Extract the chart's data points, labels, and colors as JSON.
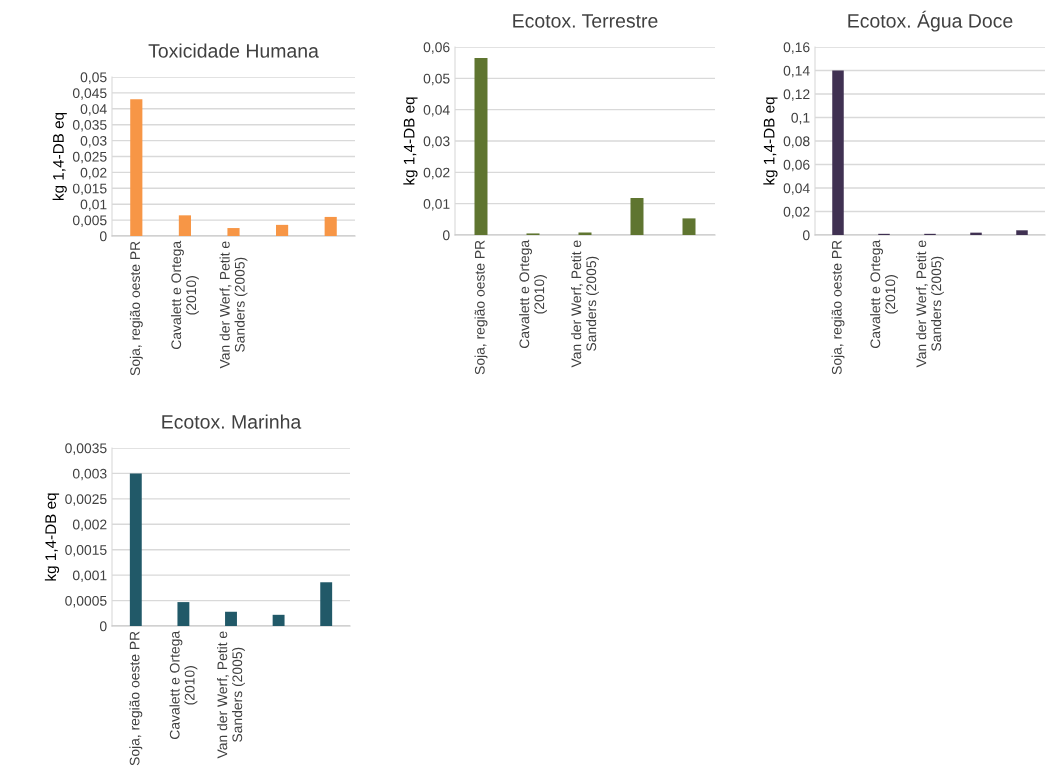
{
  "chart_data": [
    {
      "type": "bar",
      "title": "Toxicidade Humana",
      "ylabel": "kg 1,4-DB eq",
      "categories": [
        "Soja, região oeste PR",
        "Cavalett e Ortega (2010)",
        "Van der Werf, Petit e Sanders (2005)",
        null,
        null
      ],
      "values": [
        0.043,
        0.0065,
        0.0025,
        0.0035,
        0.006
      ],
      "color": "#f79646",
      "ylim": [
        0,
        0.05
      ],
      "yticks": [
        0,
        {
          "value": 0.005,
          "label": "0,005"
        },
        {
          "value": 0.01,
          "label": "0,01"
        },
        {
          "value": 0.015,
          "label": "0,015"
        },
        {
          "value": 0.02,
          "label": "0,02"
        },
        {
          "value": 0.025,
          "label": "0,025"
        },
        {
          "value": 0.03,
          "label": "0,03"
        },
        {
          "value": 0.035,
          "label": "0,035"
        },
        {
          "value": 0.04,
          "label": "0,04"
        },
        {
          "value": 0.045,
          "label": "0,045"
        },
        {
          "value": 0.05,
          "label": "0,05"
        }
      ],
      "grid": "y"
    },
    {
      "type": "bar",
      "title": "Ecotox. Terrestre",
      "ylabel": "kg 1,4-DB eq",
      "categories": [
        "Soja, região oeste PR",
        "Cavalett e Ortega (2010)",
        "Van der Werf, Petit e Sanders (2005)",
        null,
        null
      ],
      "values": [
        0.0565,
        0.0005,
        0.0008,
        0.0118,
        0.0053
      ],
      "color": "#5f7530",
      "ylim": [
        0,
        0.06
      ],
      "yticks": [
        0,
        {
          "value": 0.01,
          "label": "0,01"
        },
        {
          "value": 0.02,
          "label": "0,02"
        },
        {
          "value": 0.03,
          "label": "0,03"
        },
        {
          "value": 0.04,
          "label": "0,04"
        },
        {
          "value": 0.05,
          "label": "0,05"
        },
        {
          "value": 0.06,
          "label": "0,06"
        }
      ],
      "grid": "y"
    },
    {
      "type": "bar",
      "title": "Ecotox. Água Doce",
      "ylabel": "kg 1,4-DB eq",
      "categories": [
        "Soja, região oeste PR",
        "Cavalett e Ortega (2010)",
        "Van der Werf, Petit e Sanders (2005)",
        null,
        null
      ],
      "values": [
        0.14,
        0.001,
        0.001,
        0.002,
        0.004
      ],
      "color": "#403152",
      "ylim": [
        0,
        0.16
      ],
      "yticks": [
        0,
        {
          "value": 0.02,
          "label": "0,02"
        },
        {
          "value": 0.04,
          "label": "0,04"
        },
        {
          "value": 0.06,
          "label": "0,06"
        },
        {
          "value": 0.08,
          "label": "0,08"
        },
        {
          "value": 0.1,
          "label": "0,1"
        },
        {
          "value": 0.12,
          "label": "0,12"
        },
        {
          "value": 0.14,
          "label": "0,14"
        },
        {
          "value": 0.16,
          "label": "0,16"
        }
      ],
      "grid": "y"
    },
    {
      "type": "bar",
      "title": "Ecotox. Marinha",
      "ylabel": "kg 1,4-DB eq",
      "categories": [
        "Soja, região oeste PR",
        "Cavalett e Ortega (2010)",
        "Van der Werf, Petit e Sanders (2005)",
        null,
        null
      ],
      "values": [
        0.003,
        0.00047,
        0.00028,
        0.00022,
        0.00086
      ],
      "color": "#215968",
      "ylim": [
        0,
        0.0035
      ],
      "yticks": [
        0,
        {
          "value": 0.0005,
          "label": "0,0005"
        },
        {
          "value": 0.001,
          "label": "0,001"
        },
        {
          "value": 0.0015,
          "label": "0,0015"
        },
        {
          "value": 0.002,
          "label": "0,002"
        },
        {
          "value": 0.0025,
          "label": "0,0025"
        },
        {
          "value": 0.003,
          "label": "0,003"
        },
        {
          "value": 0.0035,
          "label": "0,0035"
        }
      ],
      "grid": "y"
    }
  ]
}
